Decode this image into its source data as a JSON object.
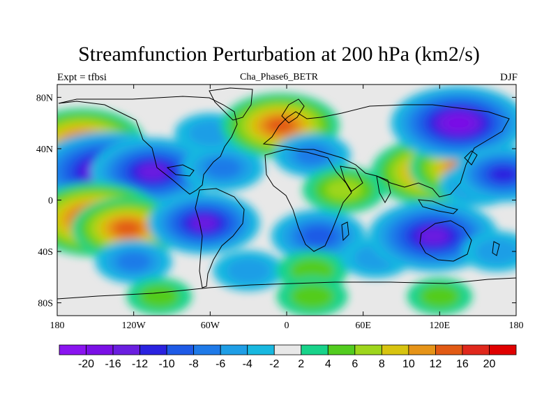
{
  "title": "Streamfunction Perturbation at 200 hPa (km2/s)",
  "subtitle_left": "Expt = tfbsi",
  "subtitle_center": "Cha_Phase6_BETR",
  "subtitle_right": "DJF",
  "chart_data": {
    "type": "heatmap",
    "projection": "cylindrical-equidistant",
    "x_ticks": [
      {
        "lon": -180,
        "label": "180"
      },
      {
        "lon": -120,
        "label": "120W"
      },
      {
        "lon": -60,
        "label": "60W"
      },
      {
        "lon": 0,
        "label": "0"
      },
      {
        "lon": 60,
        "label": "60E"
      },
      {
        "lon": 120,
        "label": "120E"
      },
      {
        "lon": 180,
        "label": "180"
      }
    ],
    "y_ticks": [
      {
        "lat": 80,
        "label": "80N"
      },
      {
        "lat": 40,
        "label": "40N"
      },
      {
        "lat": 0,
        "label": "0"
      },
      {
        "lat": -40,
        "label": "40S"
      },
      {
        "lat": -80,
        "label": "80S"
      }
    ],
    "lon_range": [
      -180,
      180
    ],
    "lat_range": [
      -90,
      90
    ],
    "colorbar": {
      "labels": [
        "-20",
        "-16",
        "-12",
        "-10",
        "-8",
        "-6",
        "-4",
        "-2",
        "2",
        "4",
        "6",
        "8",
        "10",
        "12",
        "16",
        "20"
      ],
      "colors": [
        "#8a14f0",
        "#7a10e6",
        "#6a1ee0",
        "#2a22e0",
        "#1e5ae6",
        "#1f7ae8",
        "#1f9ee6",
        "#18b8e0",
        "#e8e8e8",
        "#18d38a",
        "#52cc1f",
        "#9ed61c",
        "#d8c410",
        "#e69418",
        "#e25a14",
        "#e0281c",
        "#e00000"
      ]
    },
    "anomalies": [
      {
        "lon": -160,
        "lat": 45,
        "value": 14
      },
      {
        "lon": -140,
        "lat": 22,
        "value": -18
      },
      {
        "lon": -105,
        "lat": 22,
        "value": -14
      },
      {
        "lon": -150,
        "lat": -15,
        "value": 16
      },
      {
        "lon": -125,
        "lat": -22,
        "value": 12
      },
      {
        "lon": -120,
        "lat": -48,
        "value": -6
      },
      {
        "lon": -65,
        "lat": -18,
        "value": -12
      },
      {
        "lon": -50,
        "lat": 25,
        "value": -7
      },
      {
        "lon": -60,
        "lat": 52,
        "value": -5
      },
      {
        "lon": -30,
        "lat": -55,
        "value": -5
      },
      {
        "lon": -5,
        "lat": 58,
        "value": 13
      },
      {
        "lon": 20,
        "lat": 35,
        "value": -6
      },
      {
        "lon": 25,
        "lat": -28,
        "value": -9
      },
      {
        "lon": 45,
        "lat": 8,
        "value": 7
      },
      {
        "lon": 20,
        "lat": -55,
        "value": 5
      },
      {
        "lon": 70,
        "lat": -45,
        "value": -5
      },
      {
        "lon": 115,
        "lat": 22,
        "value": 14
      },
      {
        "lon": 140,
        "lat": 25,
        "value": 12
      },
      {
        "lon": 135,
        "lat": 60,
        "value": -16
      },
      {
        "lon": 115,
        "lat": -28,
        "value": -15
      },
      {
        "lon": 150,
        "lat": 12,
        "value": -6
      },
      {
        "lon": 170,
        "lat": 20,
        "value": -10
      },
      {
        "lon": 165,
        "lat": -40,
        "value": -5
      },
      {
        "lon": 20,
        "lat": -75,
        "value": 5
      },
      {
        "lon": -100,
        "lat": -75,
        "value": 4
      },
      {
        "lon": 120,
        "lat": -75,
        "value": 4
      }
    ]
  }
}
